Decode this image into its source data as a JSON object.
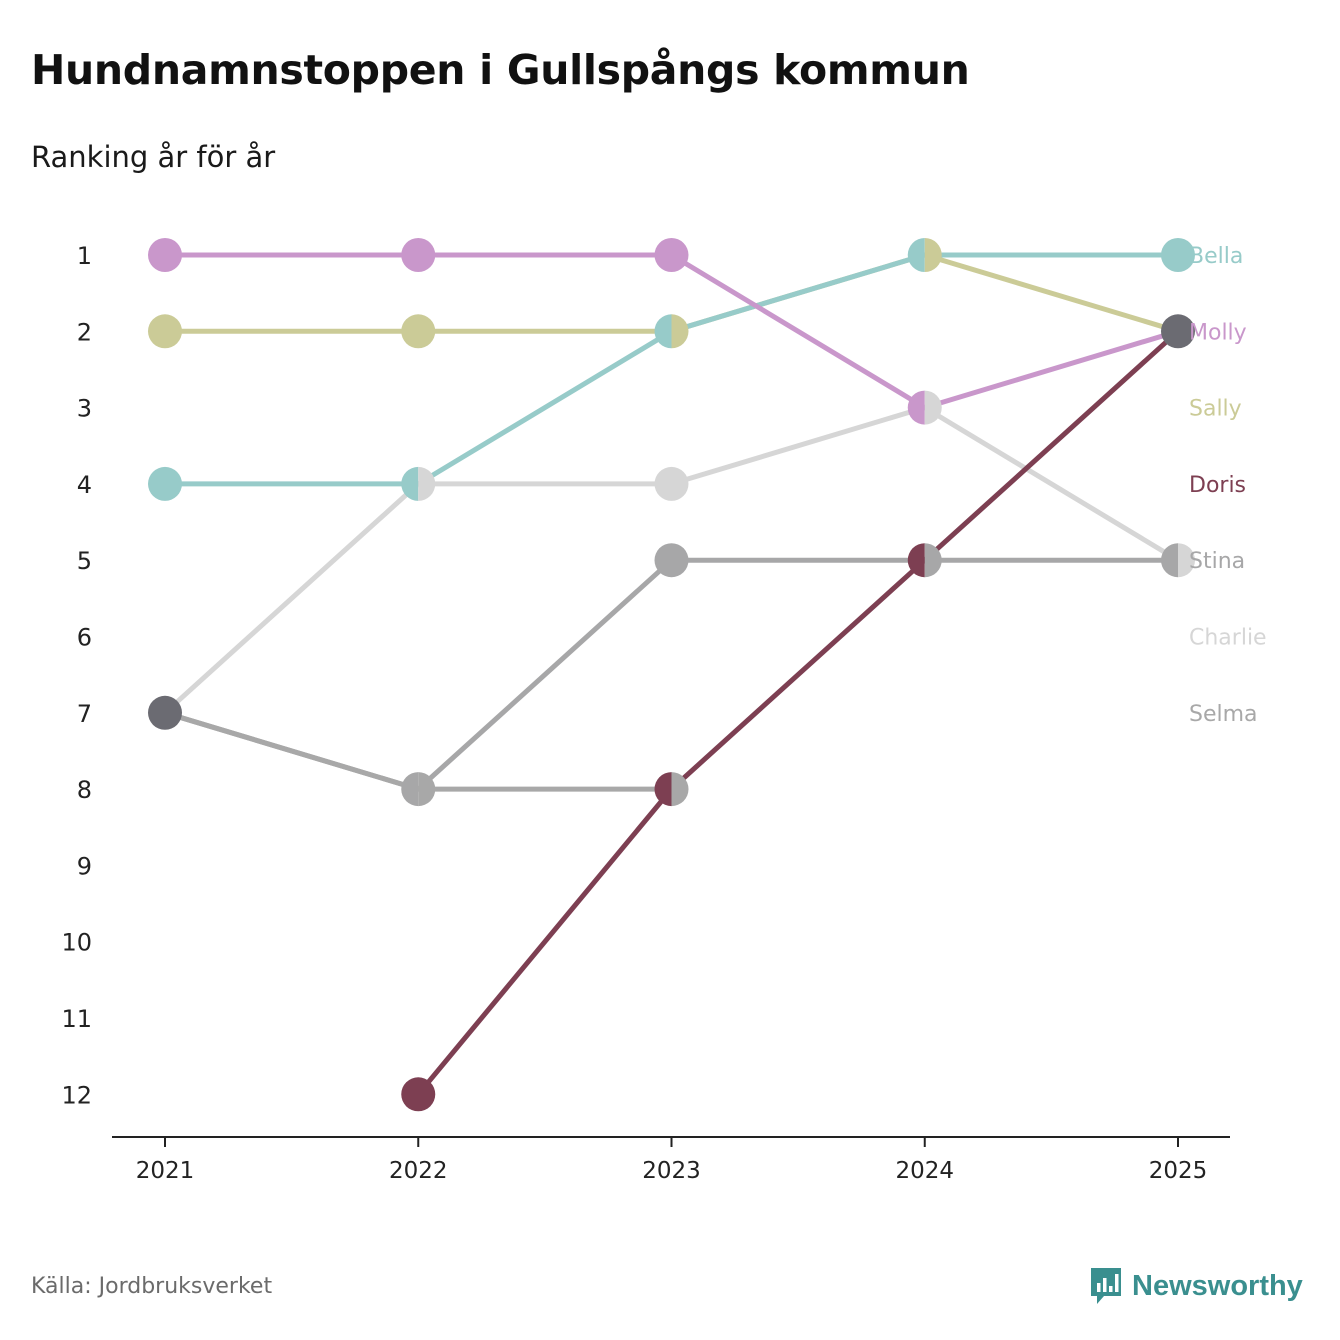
{
  "title": "Hundnamnstoppen i Gullspångs kommun",
  "subtitle": "Ranking år för år",
  "source": "Källa: Jordbruksverket",
  "brand": {
    "name": "Newsworthy",
    "logo_icon": "chart-speech-bubble-icon",
    "color": "#3a8f8f"
  },
  "chart_data": {
    "type": "line",
    "title": "Hundnamnstoppen i Gullspångs kommun",
    "subtitle": "Ranking år för år",
    "xlabel": "",
    "ylabel": "",
    "categories": [
      "2021",
      "2022",
      "2023",
      "2024",
      "2025"
    ],
    "y_ticks": [
      "1",
      "2",
      "3",
      "4",
      "5",
      "6",
      "7",
      "8",
      "9",
      "10",
      "11",
      "12"
    ],
    "ylim": [
      1,
      12
    ],
    "y_inverted": true,
    "series": [
      {
        "name": "Bella",
        "color": "#97cbc9",
        "values": [
          4,
          4,
          2,
          1,
          1
        ],
        "label_rank": 1
      },
      {
        "name": "Molly",
        "color": "#c997cb",
        "values": [
          1,
          1,
          1,
          3,
          2
        ],
        "label_rank": 2
      },
      {
        "name": "Sally",
        "color": "#cbcb97",
        "values": [
          2,
          2,
          2,
          1,
          2
        ],
        "label_rank": 3
      },
      {
        "name": "Doris",
        "color": "#7d3f52",
        "values": [
          null,
          12,
          8,
          5,
          2
        ],
        "label_rank": 4
      },
      {
        "name": "Stina",
        "color": "#a7a7a8",
        "values": [
          7,
          8,
          5,
          5,
          5
        ],
        "label_rank": 5
      },
      {
        "name": "Charlie",
        "color": "#d6d6d6",
        "values": [
          7,
          4,
          4,
          3,
          5
        ],
        "label_rank": 6
      },
      {
        "name": "Selma",
        "color": "#a8a8a8",
        "values": [
          7,
          8,
          8,
          null,
          null
        ],
        "label_rank": 7
      }
    ],
    "overlap_color": "#6b6b72",
    "legend": "right, inline labels"
  }
}
